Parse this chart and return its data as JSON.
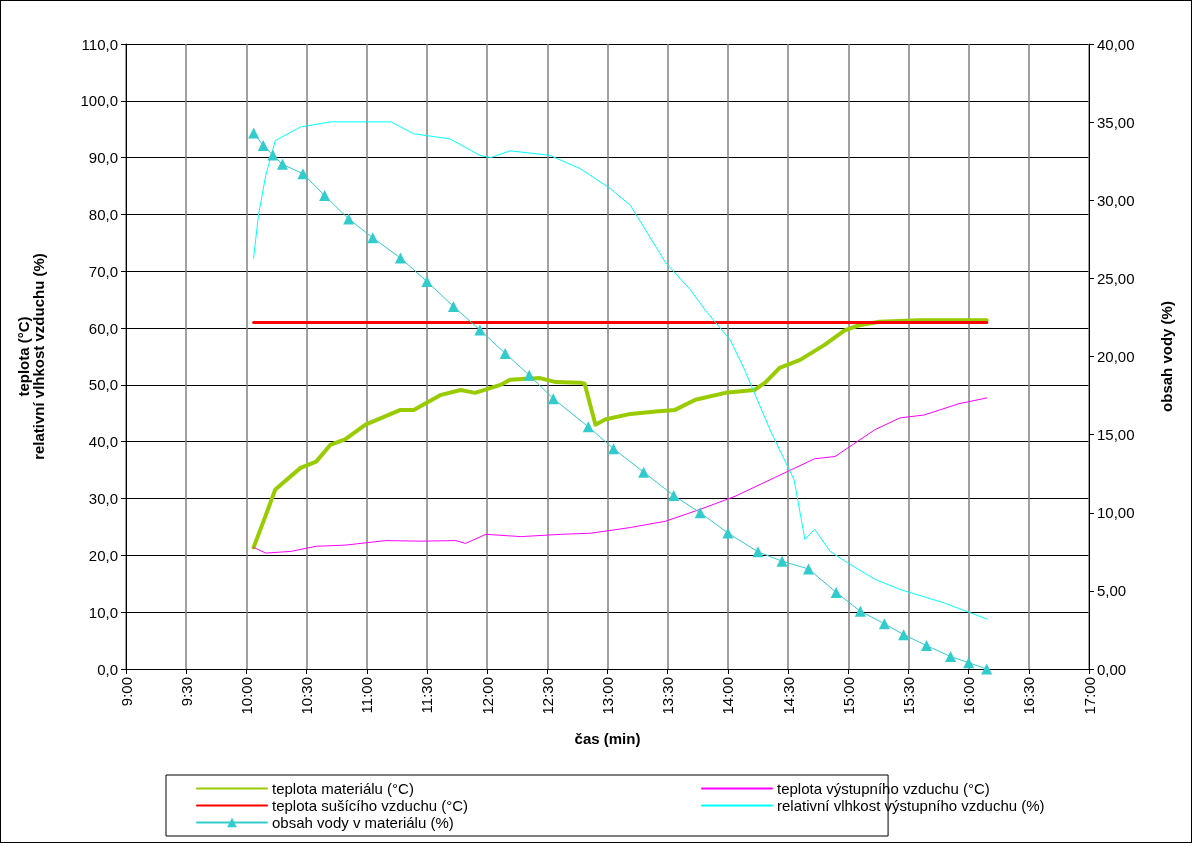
{
  "chart_data": {
    "type": "line",
    "xlabel": "čas (min)",
    "ylabel": "teplota (°C)\nrelativní vlhkost vzduchu (%)",
    "y2label": "obsah vody (%)",
    "xlim": [
      9,
      17
    ],
    "xticks": [
      {
        "value": 9,
        "label": "9:00"
      },
      {
        "value": 9.5,
        "label": "9:30"
      },
      {
        "value": 10,
        "label": "10:00"
      },
      {
        "value": 10.5,
        "label": "10:30"
      },
      {
        "value": 11,
        "label": "11:00"
      },
      {
        "value": 11.5,
        "label": "11:30"
      },
      {
        "value": 12,
        "label": "12:00"
      },
      {
        "value": 12.5,
        "label": "12:30"
      },
      {
        "value": 13,
        "label": "13:00"
      },
      {
        "value": 13.5,
        "label": "13:30"
      },
      {
        "value": 14,
        "label": "14:00"
      },
      {
        "value": 14.5,
        "label": "14:30"
      },
      {
        "value": 15,
        "label": "15:00"
      },
      {
        "value": 15.5,
        "label": "15:30"
      },
      {
        "value": 16,
        "label": "16:00"
      },
      {
        "value": 16.5,
        "label": "16:30"
      },
      {
        "value": 17,
        "label": "17:00"
      }
    ],
    "ylim": [
      0,
      110
    ],
    "yticks": [
      {
        "value": 0,
        "label": "0,0"
      },
      {
        "value": 10,
        "label": "10,0"
      },
      {
        "value": 20,
        "label": "20,0"
      },
      {
        "value": 30,
        "label": "30,0"
      },
      {
        "value": 40,
        "label": "40,0"
      },
      {
        "value": 50,
        "label": "50,0"
      },
      {
        "value": 60,
        "label": "60,0"
      },
      {
        "value": 70,
        "label": "70,0"
      },
      {
        "value": 80,
        "label": "80,0"
      },
      {
        "value": 90,
        "label": "90,0"
      },
      {
        "value": 100,
        "label": "100,0"
      },
      {
        "value": 110,
        "label": "110,0"
      }
    ],
    "y2lim": [
      0,
      40
    ],
    "y2ticks": [
      {
        "value": 0,
        "label": "0,00"
      },
      {
        "value": 5,
        "label": "5,00"
      },
      {
        "value": 10,
        "label": "10,00"
      },
      {
        "value": 15,
        "label": "15,00"
      },
      {
        "value": 20,
        "label": "20,00"
      },
      {
        "value": 25,
        "label": "25,00"
      },
      {
        "value": 30,
        "label": "30,00"
      },
      {
        "value": 35,
        "label": "35,00"
      },
      {
        "value": 40,
        "label": "40,00"
      }
    ],
    "grid": true,
    "legend": "bottom",
    "line_style": "solid",
    "series": [
      {
        "name": "teplota materiálu (°C)",
        "color": "#99cc00",
        "x": [
          10.06,
          10.16,
          10.24,
          10.45,
          10.58,
          10.7,
          10.82,
          10.99,
          11.28,
          11.39,
          11.61,
          11.78,
          11.9,
          12.11,
          12.19,
          12.44,
          12.57,
          12.77,
          12.81,
          12.9,
          12.98,
          13.19,
          13.4,
          13.56,
          13.73,
          13.98,
          14.22,
          14.31,
          14.43,
          14.6,
          14.8,
          14.97,
          15.09,
          15.26,
          15.59,
          16.15
        ],
        "values": [
          21.4,
          27,
          31.6,
          35.4,
          36.5,
          39.5,
          40.4,
          43,
          45.6,
          45.6,
          48.2,
          49.1,
          48.6,
          50,
          50.9,
          51.2,
          50.5,
          50.4,
          50.2,
          43,
          43.9,
          44.9,
          45.3,
          45.6,
          47.4,
          48.6,
          49.1,
          50.4,
          53,
          54.4,
          57,
          59.6,
          60.5,
          61.1,
          61.4,
          61.4
        ]
      },
      {
        "name": "teplota výstupního vzduchu (°C)",
        "color": "#ff00ff",
        "x": [
          10.06,
          10.16,
          10.37,
          10.58,
          10.82,
          11.16,
          11.45,
          11.74,
          11.82,
          11.99,
          12.28,
          12.61,
          12.86,
          13.19,
          13.48,
          13.77,
          14.06,
          14.39,
          14.72,
          14.89,
          15.22,
          15.43,
          15.63,
          15.92,
          16.15
        ],
        "values": [
          21.4,
          20.4,
          20.7,
          21.6,
          21.8,
          22.6,
          22.5,
          22.6,
          22.1,
          23.7,
          23.3,
          23.7,
          23.9,
          24.9,
          26,
          28.1,
          30.4,
          33.7,
          37,
          37.4,
          42.1,
          44.2,
          44.7,
          46.7,
          47.7
        ]
      },
      {
        "name": "teplota sušícího vzduchu (°C)",
        "color": "#ff0000",
        "x": [
          10.06,
          16.15
        ],
        "values": [
          61,
          61
        ]
      },
      {
        "name": "relativní vlhkost výstupního vzduchu (%)",
        "color": "#00ffff",
        "x": [
          10.06,
          10.1,
          10.16,
          10.24,
          10.45,
          10.7,
          11.2,
          11.39,
          11.69,
          11.94,
          12.03,
          12.19,
          12.52,
          12.77,
          13.02,
          13.19,
          13.48,
          13.69,
          13.81,
          14.02,
          14.14,
          14.35,
          14.55,
          14.64,
          14.72,
          14.85,
          14.97,
          15.22,
          15.43,
          15.8,
          16.15
        ],
        "values": [
          72.3,
          79.8,
          86.8,
          93,
          95.4,
          96.3,
          96.3,
          94.2,
          93.3,
          90.4,
          90,
          91.2,
          90.4,
          88.1,
          84.6,
          81.6,
          71.6,
          66.7,
          63.2,
          57.9,
          52.6,
          42.1,
          33.3,
          22.8,
          24.6,
          20.7,
          19,
          15.8,
          14,
          11.6,
          8.8
        ]
      },
      {
        "name": "obsah vody v materiálu (%)",
        "color": "#33cccc",
        "axis": "y2",
        "marker": "triangle",
        "x": [
          10.06,
          10.14,
          10.22,
          10.3,
          10.47,
          10.65,
          10.85,
          11.05,
          11.28,
          11.5,
          11.72,
          11.94,
          12.15,
          12.35,
          12.55,
          12.84,
          13.05,
          13.3,
          13.55,
          13.77,
          14.0,
          14.25,
          14.45,
          14.67,
          14.9,
          15.1,
          15.3,
          15.46,
          15.65,
          15.85,
          16.0,
          16.15
        ],
        "values": [
          34.3,
          33.5,
          32.9,
          32.3,
          31.7,
          30.3,
          28.8,
          27.6,
          26.3,
          24.8,
          23.2,
          21.7,
          20.2,
          18.8,
          17.3,
          15.5,
          14.1,
          12.6,
          11.1,
          10.0,
          8.7,
          7.5,
          6.9,
          6.4,
          4.9,
          3.7,
          2.9,
          2.2,
          1.5,
          0.8,
          0.4,
          0
        ]
      }
    ]
  }
}
